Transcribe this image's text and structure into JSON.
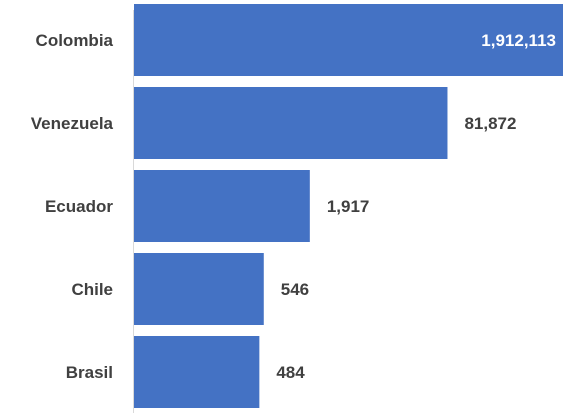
{
  "chart_data": {
    "type": "bar",
    "orientation": "horizontal",
    "scale": "log",
    "categories": [
      "Colombia",
      "Venezuela",
      "Ecuador",
      "Chile",
      "Brasil"
    ],
    "values": [
      1912113,
      81872,
      1917,
      546,
      484
    ],
    "value_labels": [
      "1,912,113",
      "81,872",
      "1,917",
      "546",
      "484"
    ],
    "title": "",
    "xlabel": "",
    "ylabel": "",
    "grid": false,
    "legend": "none",
    "colors": {
      "bar": "#4472C4",
      "label_text": "#404040",
      "label_text_inside": "#ffffff",
      "axis_line": "#d9d9d9"
    }
  }
}
